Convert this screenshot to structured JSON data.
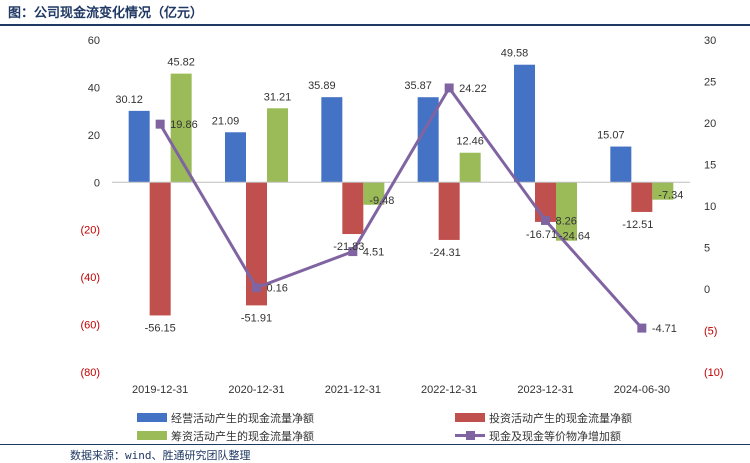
{
  "title": "图：公司现金流变化情况（亿元）",
  "source": "数据来源：wind、胜通研究团队整理",
  "colors": {
    "operating": "#4472c4",
    "investing": "#c0504d",
    "financing": "#9bbb59",
    "net": "#8064a2",
    "negative_tick": "#c00000",
    "title": "#1f3864"
  },
  "chart_data": {
    "type": "bar",
    "categories": [
      "2019-12-31",
      "2020-12-31",
      "2021-12-31",
      "2022-12-31",
      "2023-12-31",
      "2024-06-30"
    ],
    "series": [
      {
        "name": "经营活动产生的现金流量净额",
        "type": "bar",
        "axis": "left",
        "values": [
          30.12,
          21.09,
          35.89,
          35.87,
          49.58,
          15.07
        ],
        "labels": [
          "30.12",
          "21.09",
          "35.89",
          "35.87",
          "49.58",
          "15.07"
        ]
      },
      {
        "name": "投资活动产生的现金流量净额",
        "type": "bar",
        "axis": "left",
        "values": [
          -56.15,
          -51.91,
          -21.83,
          -24.31,
          -16.71,
          -12.51
        ],
        "labels": [
          "-56.15",
          "-51.91",
          "-21.83",
          "-24.31",
          "-16.71",
          "-12.51"
        ]
      },
      {
        "name": "筹资活动产生的现金流量净额",
        "type": "bar",
        "axis": "left",
        "values": [
          45.82,
          31.21,
          -9.48,
          12.46,
          -24.64,
          -7.34
        ],
        "labels": [
          "45.82",
          "31.21",
          "-9.48",
          "12.46",
          "-24.64",
          "-7.34"
        ]
      },
      {
        "name": "现金及现金等价物净增加额",
        "type": "line",
        "axis": "right",
        "values": [
          19.86,
          0.16,
          4.51,
          24.22,
          8.26,
          -4.71
        ],
        "labels": [
          "19.86",
          "0.16",
          "4.51",
          "24.22",
          "8.26",
          "-4.71"
        ]
      }
    ],
    "left_axis": {
      "ylim": [
        -80,
        60
      ],
      "ticks": [
        60,
        40,
        20,
        0,
        -20,
        -40,
        -60,
        -80
      ],
      "tick_labels": [
        "60",
        "40",
        "20",
        "0",
        "(20)",
        "(40)",
        "(60)",
        "(80)"
      ]
    },
    "right_axis": {
      "ylim": [
        -10,
        30
      ],
      "ticks": [
        30,
        25,
        20,
        15,
        10,
        5,
        0,
        -5,
        -10
      ],
      "tick_labels": [
        "30",
        "25",
        "20",
        "15",
        "10",
        "5",
        "0",
        "(5)",
        "(10)"
      ]
    },
    "legend_position": "bottom",
    "grid": false
  }
}
